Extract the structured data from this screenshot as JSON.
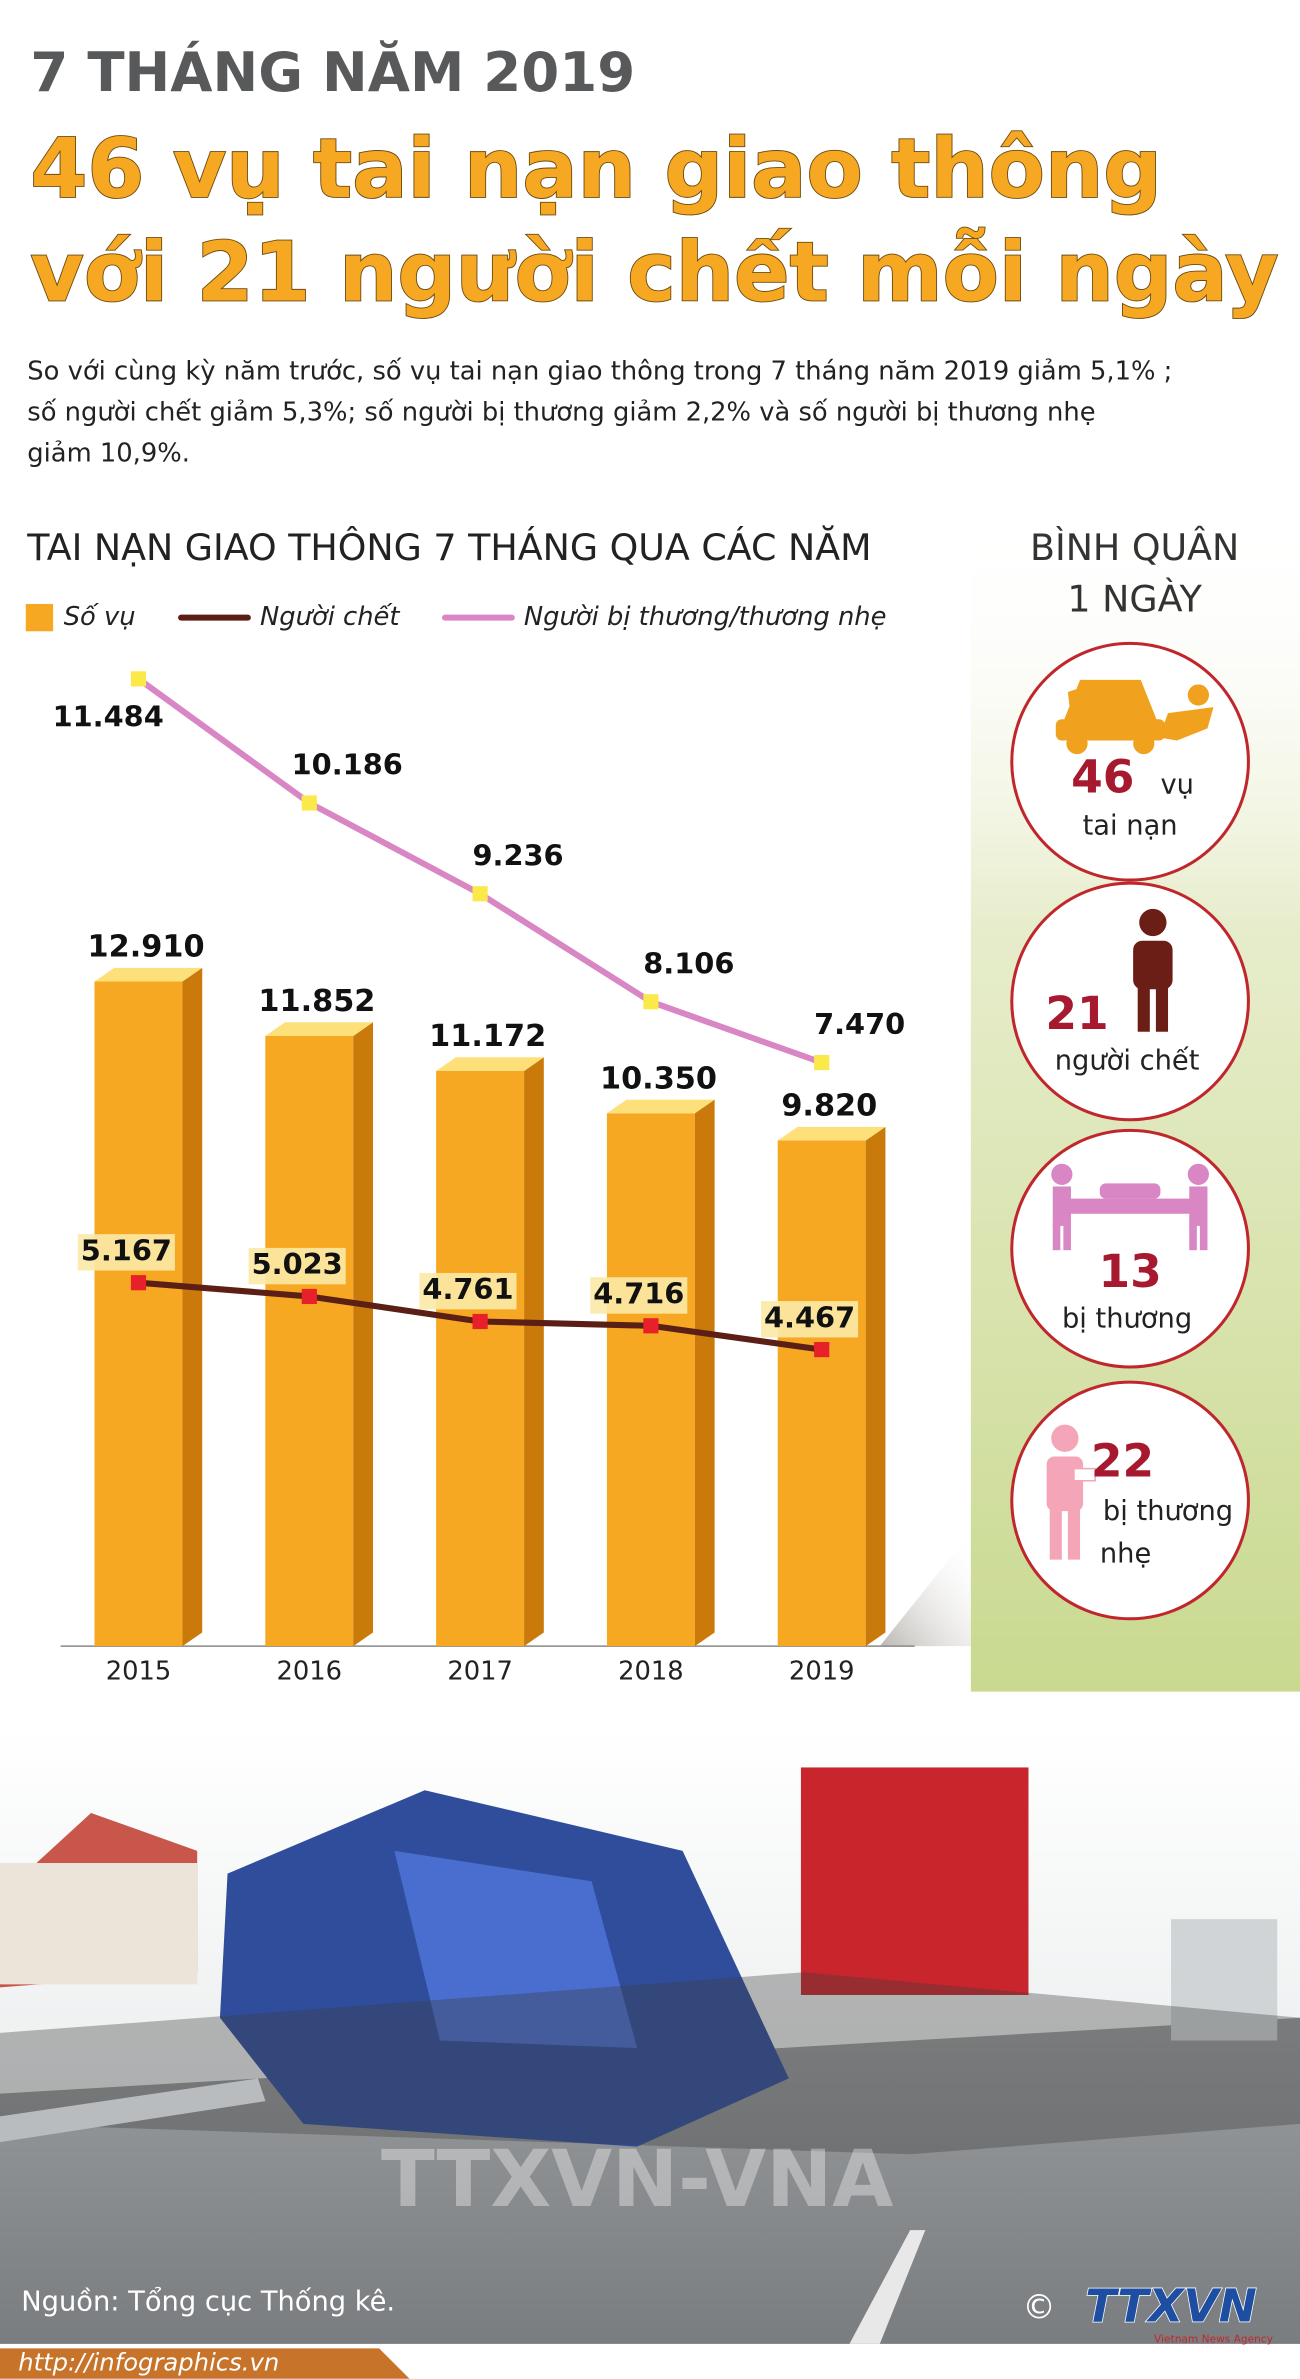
{
  "header": {
    "kicker": "7 THÁNG NĂM 2019",
    "title_lines": [
      "46 vụ tai nạn giao thông",
      "với 21 người chết mỗi ngày"
    ],
    "intro_lines": [
      "So với cùng kỳ năm trước, số vụ tai nạn giao thông trong 7 tháng năm 2019 giảm 5,1% ;",
      "số người chết giảm 5,3%; số người bị thương giảm 2,2% và số người bị thương nhẹ",
      "giảm 10,9%."
    ]
  },
  "chart_data": {
    "type": "bar",
    "title": "TAI NẠN GIAO THÔNG 7 THÁNG QUA CÁC NĂM",
    "categories": [
      "2015",
      "2016",
      "2017",
      "2018",
      "2019"
    ],
    "series": [
      {
        "name": "Số vụ",
        "type": "bar",
        "color": "#f7a823",
        "values": [
          12910,
          11852,
          11172,
          10350,
          9820
        ],
        "value_labels": [
          "12.910",
          "11.852",
          "11.172",
          "10.350",
          "9.820"
        ]
      },
      {
        "name": "Người chết",
        "type": "line",
        "axis": "y2",
        "color": "#5b1f16",
        "values": [
          5167,
          5023,
          4761,
          4716,
          4467
        ],
        "value_labels": [
          "5.167",
          "5.023",
          "4.761",
          "4.716",
          "4.467"
        ]
      },
      {
        "name": "Người bị thương/thương nhẹ",
        "type": "line",
        "axis": "y2",
        "color": "#d986c4",
        "values": [
          11484,
          10186,
          9236,
          8106,
          7470
        ],
        "value_labels": [
          "11.484",
          "10.186",
          "9.236",
          "8.106",
          "7.470"
        ]
      }
    ],
    "ylim": [
      0,
      19300
    ],
    "y2lim": [
      1365,
      11760
    ],
    "legend": "top-left"
  },
  "sidebar": {
    "title_lines": [
      "BÌNH QUÂN",
      "1 NGÀY"
    ],
    "items": [
      {
        "value": 46,
        "lines": [
          "vụ",
          "tai nạn"
        ]
      },
      {
        "value": 21,
        "lines": [
          "người chết"
        ]
      },
      {
        "value": 13,
        "lines": [
          "bị thương"
        ]
      },
      {
        "value": 22,
        "lines": [
          "bị thương",
          "nhẹ"
        ]
      }
    ]
  },
  "photo": {
    "watermark": "TTXVN-VNA"
  },
  "footer": {
    "source": "Nguồn: Tổng cục Thống kê.",
    "url": "http://infographics.vn",
    "copyright": "©",
    "logo": "TTXVN",
    "logo_sub": "Vietnam News Agency"
  }
}
